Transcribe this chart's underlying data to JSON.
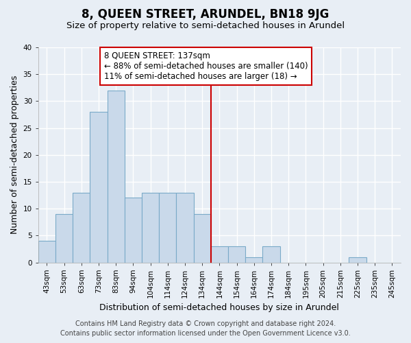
{
  "title": "8, QUEEN STREET, ARUNDEL, BN18 9JG",
  "subtitle": "Size of property relative to semi-detached houses in Arundel",
  "xlabel": "Distribution of semi-detached houses by size in Arundel",
  "ylabel": "Number of semi-detached properties",
  "bar_color": "#c9d9ea",
  "bar_edge_color": "#7aaac8",
  "bin_labels": [
    "43sqm",
    "53sqm",
    "63sqm",
    "73sqm",
    "83sqm",
    "94sqm",
    "104sqm",
    "114sqm",
    "124sqm",
    "134sqm",
    "144sqm",
    "154sqm",
    "164sqm",
    "174sqm",
    "184sqm",
    "195sqm",
    "205sqm",
    "215sqm",
    "225sqm",
    "235sqm",
    "245sqm"
  ],
  "bar_heights": [
    4,
    9,
    13,
    28,
    32,
    12,
    13,
    13,
    13,
    9,
    3,
    3,
    1,
    3,
    0,
    0,
    0,
    0,
    1,
    0,
    0
  ],
  "property_line_x": 9.5,
  "vline_color": "#cc0000",
  "annotation_box_edge": "#cc0000",
  "annotation_label": "8 QUEEN STREET: 137sqm",
  "annotation_line1": "← 88% of semi-detached houses are smaller (140)",
  "annotation_line2": "11% of semi-detached houses are larger (18) →",
  "ylim": [
    0,
    40
  ],
  "yticks": [
    0,
    5,
    10,
    15,
    20,
    25,
    30,
    35,
    40
  ],
  "footer_line1": "Contains HM Land Registry data © Crown copyright and database right 2024.",
  "footer_line2": "Contains public sector information licensed under the Open Government Licence v3.0.",
  "bg_color": "#e8eef5",
  "grid_color": "#ffffff",
  "title_fontsize": 12,
  "subtitle_fontsize": 9.5,
  "axis_label_fontsize": 9,
  "tick_fontsize": 7.5,
  "annotation_fontsize": 8.5,
  "footer_fontsize": 7
}
